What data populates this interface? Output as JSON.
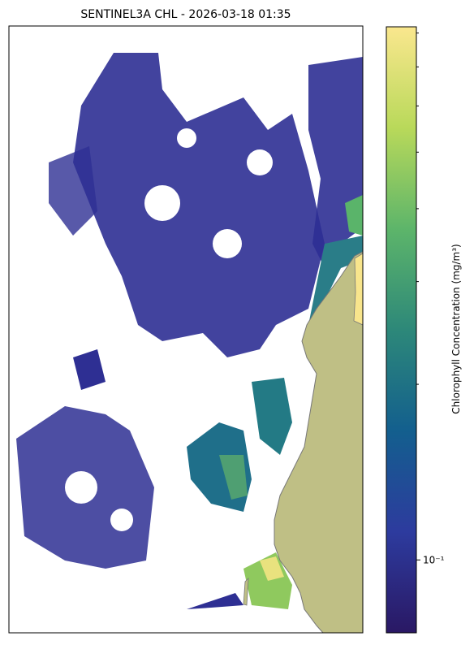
{
  "chart_data": {
    "type": "image",
    "title": "SENTINEL3A CHL - 2026-03-18 01:35",
    "colorbar": {
      "label": "Chlorophyll Concentration (mg/m³)",
      "scale": "log",
      "clim": [
        0.075,
        0.82
      ],
      "ticks": [
        {
          "value": 0.1,
          "label": "10⁻¹"
        }
      ],
      "minor_ticks": [
        0.2,
        0.3,
        0.4,
        0.5,
        0.6,
        0.7,
        0.8
      ],
      "colors": [
        "#2a1864",
        "#2d3b9e",
        "#135f8e",
        "#2d8879",
        "#5db56a",
        "#b9d95a",
        "#fae78e"
      ]
    }
  }
}
